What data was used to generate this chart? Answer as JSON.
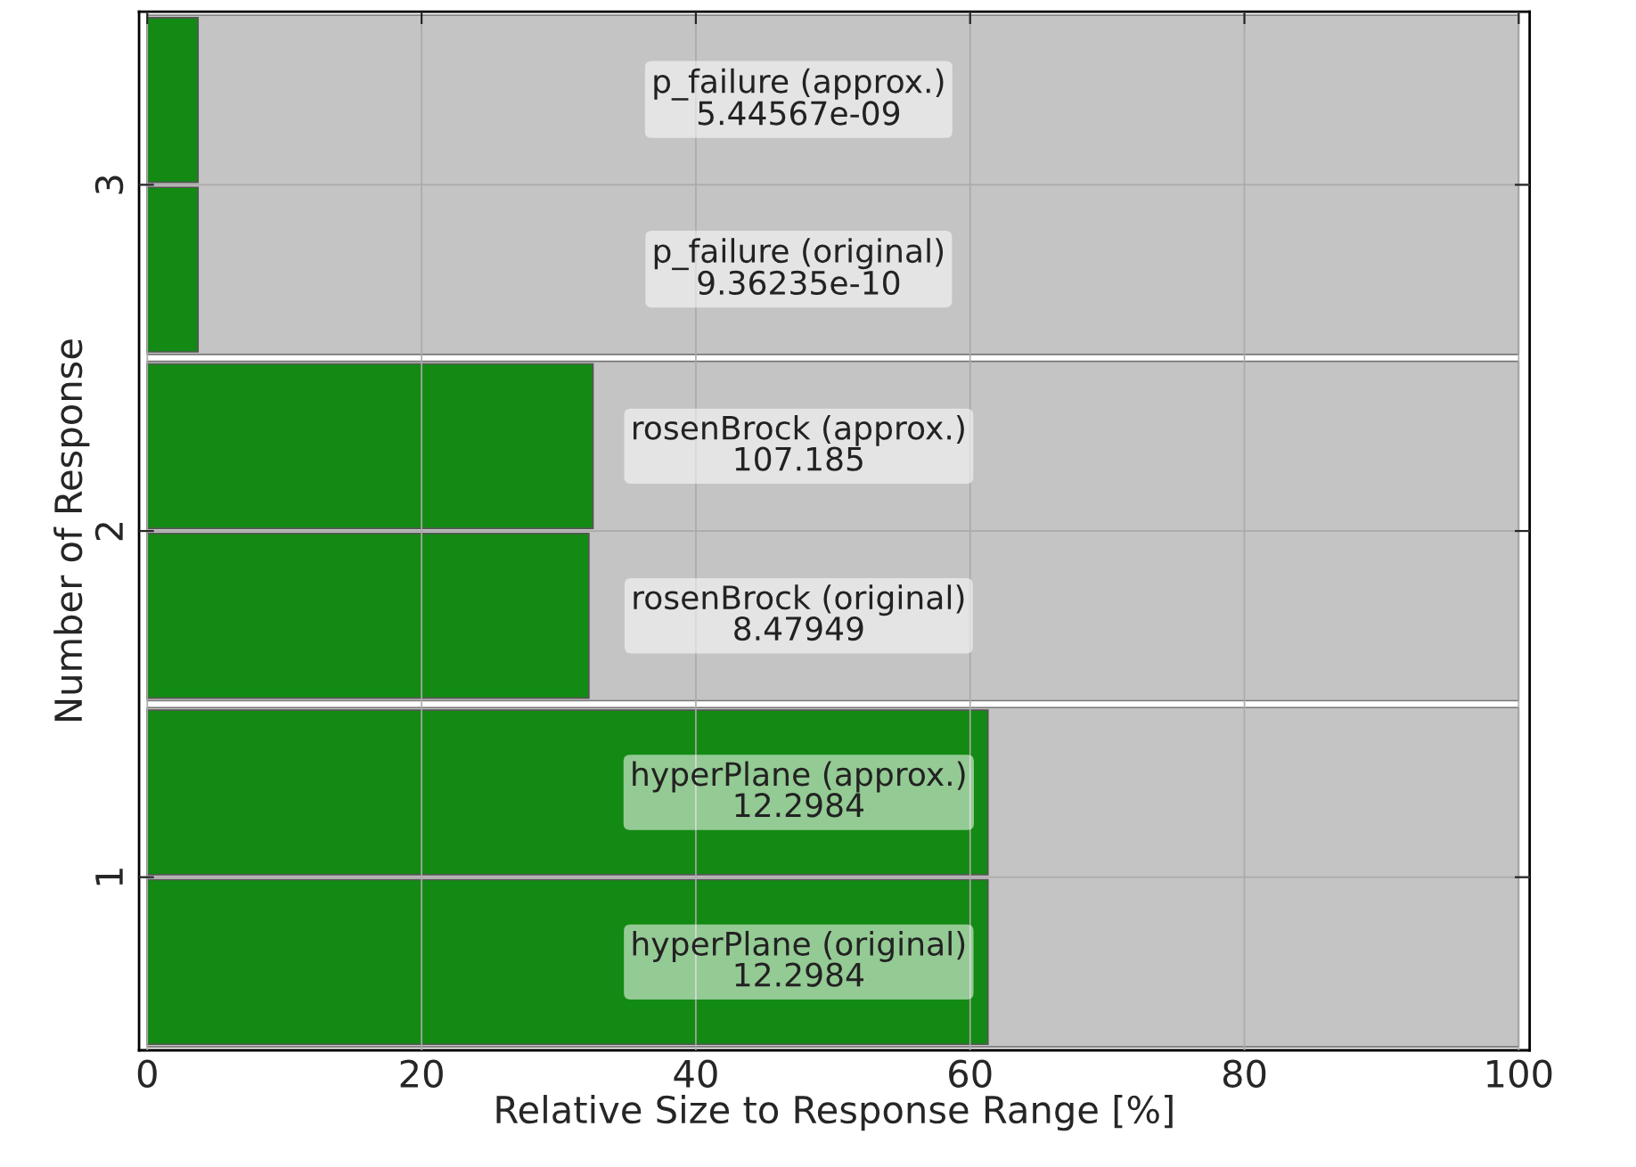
{
  "chart_data": {
    "type": "bar",
    "orientation": "horizontal",
    "xlabel": "Relative Size to Response Range [%]",
    "ylabel": "Number of Response",
    "categories": [
      "3",
      "2",
      "1"
    ],
    "series": [
      {
        "color": "#138a13",
        "values": [
          3.7,
          32.5,
          61.3
        ]
      },
      {
        "color": "#138a13",
        "values": [
          3.7,
          32.2,
          61.3
        ]
      }
    ],
    "annotations": [
      "p_failure (approx.)\n5.44567e-09",
      "p_failure (original)\n9.36235e-10",
      "rosenBrock (approx.)\n107.185",
      "rosenBrock (original)\n8.47949",
      "hyperPlane (approx.)\n12.2984",
      "hyperPlane (original)\n12.2984"
    ],
    "bands": [
      {
        "axis": "x",
        "from": 0,
        "to": 100,
        "color": "#c4c4c4"
      },
      {
        "axis": "x",
        "from": 0,
        "to": 100,
        "color": "#c4c4c4"
      },
      {
        "axis": "x",
        "from": 0,
        "to": 100,
        "color": "#c4c4c4"
      }
    ],
    "xlim": [
      -0.6,
      100.8
    ],
    "xticks": [
      0,
      20,
      40,
      60,
      80,
      100
    ],
    "grid": true
  }
}
